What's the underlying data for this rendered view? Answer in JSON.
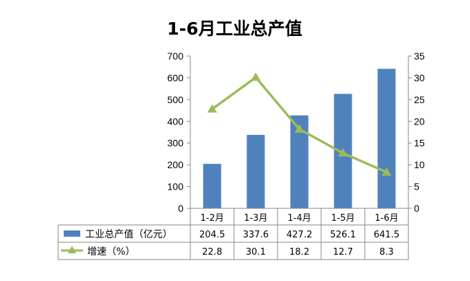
{
  "chart_data": {
    "type": "bar+line",
    "title": "1-6月工业总产值",
    "categories": [
      "1-2月",
      "1-3月",
      "1-4月",
      "1-5月",
      "1-6月"
    ],
    "series": [
      {
        "name": "工业总产值（亿元）",
        "type": "bar",
        "axis": "left",
        "values": [
          204.5,
          337.6,
          427.2,
          526.1,
          641.5
        ],
        "color": "#4f81bd"
      },
      {
        "name": "增速（%）",
        "type": "line",
        "axis": "right",
        "values": [
          22.8,
          30.1,
          18.2,
          12.7,
          8.3
        ],
        "color": "#9bbb59"
      }
    ],
    "y_left": {
      "min": 0,
      "max": 700,
      "step": 100,
      "ticks": [
        "0",
        "100",
        "200",
        "300",
        "400",
        "500",
        "600",
        "700"
      ]
    },
    "y_right": {
      "min": 0,
      "max": 35,
      "step": 5,
      "ticks": [
        "0",
        "5",
        "10",
        "15",
        "20",
        "25",
        "30",
        "35"
      ]
    },
    "table": {
      "rows": [
        [
          "204.5",
          "337.6",
          "427.2",
          "526.1",
          "641.5"
        ],
        [
          "22.8",
          "30.1",
          "18.2",
          "12.7",
          "8.3"
        ]
      ]
    },
    "grid": false,
    "legend": "data-table"
  }
}
